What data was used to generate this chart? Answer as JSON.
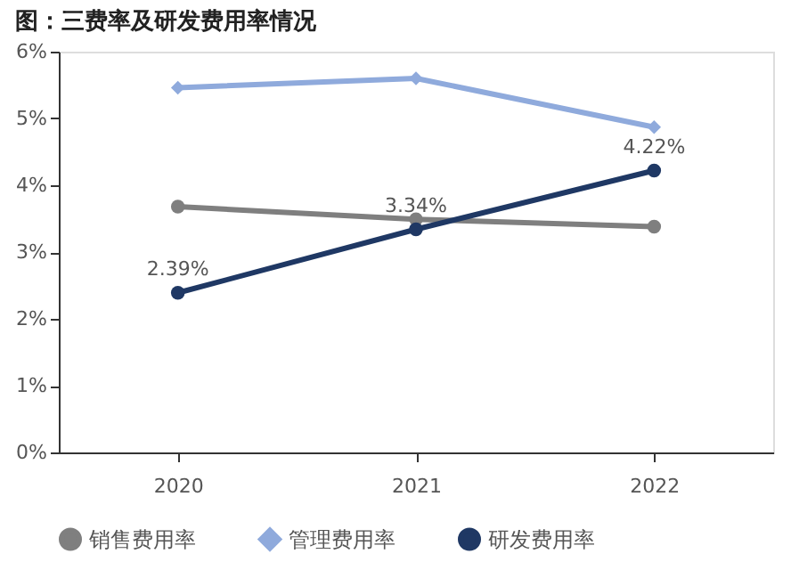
{
  "chart_data": {
    "type": "line",
    "title": "图：三费率及研发费用率情况",
    "categories": [
      "2020",
      "2021",
      "2022"
    ],
    "series": [
      {
        "name": "销售费用率",
        "color": "#7f7f7f",
        "marker": "circle",
        "values": [
          3.68,
          3.49,
          3.38
        ]
      },
      {
        "name": "管理费用率",
        "color": "#8faadc",
        "marker": "diamond",
        "values": [
          5.46,
          5.6,
          4.87
        ]
      },
      {
        "name": "研发费用率",
        "color": "#1f3864",
        "marker": "circle",
        "values": [
          2.39,
          3.34,
          4.22
        ],
        "value_labels": [
          "2.39%",
          "3.34%",
          "4.22%"
        ]
      }
    ],
    "ylim": [
      0,
      6
    ],
    "yticks": [
      {
        "value": 0,
        "label": "0%"
      },
      {
        "value": 1,
        "label": "1%"
      },
      {
        "value": 2,
        "label": "2%"
      },
      {
        "value": 3,
        "label": "3%"
      },
      {
        "value": 4,
        "label": "4%"
      },
      {
        "value": 5,
        "label": "5%"
      },
      {
        "value": 6,
        "label": "6%"
      }
    ],
    "grid": false,
    "legend": "bottom"
  }
}
